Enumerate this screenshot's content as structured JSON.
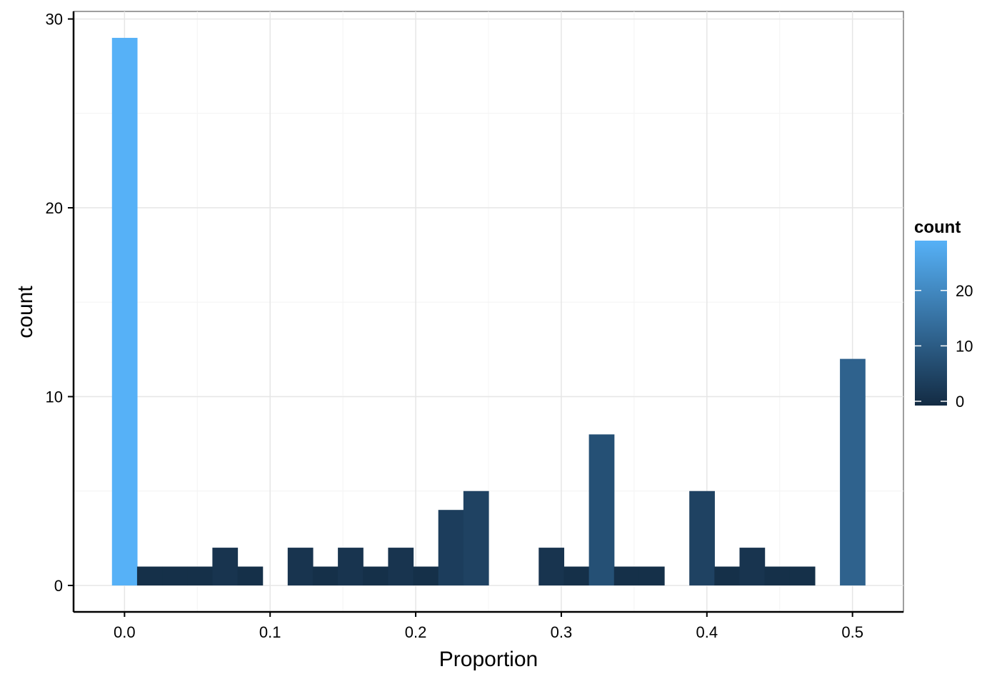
{
  "chart_data": {
    "type": "bar",
    "subtype": "histogram",
    "xlabel": "Proportion",
    "ylabel": "count",
    "xlim": [
      -0.035,
      0.535
    ],
    "ylim": [
      -1.4,
      30.4
    ],
    "x_ticks": [
      "0.0",
      "0.1",
      "0.2",
      "0.3",
      "0.4",
      "0.5"
    ],
    "x_tick_values": [
      0.0,
      0.1,
      0.2,
      0.3,
      0.4,
      0.5
    ],
    "y_ticks": [
      "0",
      "10",
      "20",
      "30"
    ],
    "y_tick_values": [
      0,
      10,
      20,
      30
    ],
    "bin_width": 0.01724,
    "bins": [
      {
        "x": 0.0,
        "count": 29
      },
      {
        "x": 0.01724,
        "count": 1
      },
      {
        "x": 0.03448,
        "count": 1
      },
      {
        "x": 0.05172,
        "count": 1
      },
      {
        "x": 0.06897,
        "count": 2
      },
      {
        "x": 0.08621,
        "count": 1
      },
      {
        "x": 0.10345,
        "count": 0
      },
      {
        "x": 0.12069,
        "count": 2
      },
      {
        "x": 0.13793,
        "count": 1
      },
      {
        "x": 0.15517,
        "count": 2
      },
      {
        "x": 0.17241,
        "count": 1
      },
      {
        "x": 0.18966,
        "count": 2
      },
      {
        "x": 0.2069,
        "count": 1
      },
      {
        "x": 0.22414,
        "count": 4
      },
      {
        "x": 0.24138,
        "count": 5
      },
      {
        "x": 0.25862,
        "count": 0
      },
      {
        "x": 0.27586,
        "count": 0
      },
      {
        "x": 0.2931,
        "count": 2
      },
      {
        "x": 0.31034,
        "count": 1
      },
      {
        "x": 0.32759,
        "count": 8
      },
      {
        "x": 0.34483,
        "count": 1
      },
      {
        "x": 0.36207,
        "count": 1
      },
      {
        "x": 0.37931,
        "count": 0
      },
      {
        "x": 0.39655,
        "count": 5
      },
      {
        "x": 0.41379,
        "count": 1
      },
      {
        "x": 0.43103,
        "count": 2
      },
      {
        "x": 0.44828,
        "count": 1
      },
      {
        "x": 0.46552,
        "count": 1
      },
      {
        "x": 0.48276,
        "count": 0
      },
      {
        "x": 0.5,
        "count": 12
      }
    ],
    "fill_scale": {
      "low": "#132B43",
      "high": "#56B1F7",
      "min": 0,
      "max": 29
    },
    "legend": {
      "title": "count",
      "position": "right",
      "labels": [
        "0",
        "10",
        "20"
      ],
      "values": [
        0,
        10,
        20
      ]
    },
    "grid": true,
    "theme": "bw"
  }
}
